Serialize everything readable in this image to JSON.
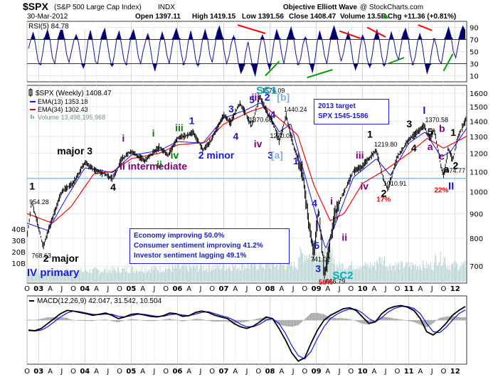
{
  "header": {
    "symbol": "$SPX",
    "name": "(S&P 500 Large Cap Index)",
    "exchange": "INDX",
    "provider": "Objective Elliott Wave",
    "copyright": "@ StockCharts.com",
    "date": "30-Mar-2012",
    "open": "Open 1397.11",
    "high": "High 1419.15",
    "low": "Low 1391.56",
    "close": "Close 1408.47",
    "volume": "Volume 13.5B",
    "change": "Chg +11.36 (+0.81%)",
    "change_arrow": "up-arrow-icon"
  },
  "rsi_panel": {
    "label": "RSI(5) 84.78",
    "ticks": [
      "90",
      "70",
      "50",
      "30",
      "10"
    ]
  },
  "price_panel": {
    "legend": [
      {
        "text": "$SPX (Weekly) 1408.47",
        "color": "#000000"
      },
      {
        "text": "EMA(13) 1353.18",
        "color": "#1010ff"
      },
      {
        "text": "EMA(34) 1302.43",
        "color": "#ff0000"
      },
      {
        "text": "Volume 13,498,195,968",
        "color": "#8fb0b0"
      }
    ],
    "target_box": [
      "2013 target",
      "SPX 1545-1586"
    ],
    "sentiment_box": [
      "Economy improving 50.0%",
      "Consumer sentiment improving 41.2%",
      "Investor sentiment lagging 49.1%"
    ],
    "volume_ticks": [
      "40B",
      "30B",
      "20B",
      "10B"
    ]
  },
  "macd_panel": {
    "label": "MACD(12,26,9) 42.047, 31.542, 10.504"
  },
  "x_axis": [
    "O",
    "03",
    "A",
    "J",
    "O",
    "04",
    "A",
    "J",
    "O",
    "05",
    "A",
    "J",
    "O",
    "06",
    "A",
    "J",
    "O",
    "07",
    "A",
    "J",
    "O",
    "08",
    "A",
    "J",
    "O",
    "09",
    "A",
    "J",
    "O",
    "10",
    "A",
    "J",
    "O",
    "11",
    "A",
    "J",
    "O",
    "12"
  ],
  "chart_data": {
    "type": "line",
    "title": "$SPX (S&P 500 Large Cap Index) INDX Weekly",
    "xlabel": "",
    "ylabel": "",
    "x_range": [
      2002.75,
      2012.25
    ],
    "ylim": [
      650,
      1650
    ],
    "ylog": true,
    "y_ticks": [
      700,
      800,
      900,
      1000,
      1100,
      1200,
      1300,
      1400,
      1500,
      1600
    ],
    "support_line": 1065,
    "price_path": [
      [
        2002.75,
        800
      ],
      [
        2002.85,
        954.28
      ],
      [
        2002.95,
        880
      ],
      [
        2003.1,
        768.63
      ],
      [
        2003.3,
        880
      ],
      [
        2003.5,
        1000
      ],
      [
        2003.75,
        1040
      ],
      [
        2004.0,
        1150
      ],
      [
        2004.2,
        1110
      ],
      [
        2004.45,
        1085
      ],
      [
        2004.6,
        1063
      ],
      [
        2004.8,
        1170
      ],
      [
        2005.0,
        1210
      ],
      [
        2005.3,
        1160
      ],
      [
        2005.6,
        1235
      ],
      [
        2005.8,
        1190
      ],
      [
        2006.0,
        1290
      ],
      [
        2006.35,
        1325
      ],
      [
        2006.55,
        1220
      ],
      [
        2006.7,
        1265
      ],
      [
        2007.0,
        1440
      ],
      [
        2007.15,
        1390
      ],
      [
        2007.35,
        1530
      ],
      [
        2007.6,
        1370.6
      ],
      [
        2007.78,
        1576.09
      ],
      [
        2007.95,
        1450
      ],
      [
        2008.05,
        1405
      ],
      [
        2008.2,
        1270.05
      ],
      [
        2008.35,
        1440.24
      ],
      [
        2008.5,
        1250
      ],
      [
        2008.7,
        1100
      ],
      [
        2008.85,
        850
      ],
      [
        2008.95,
        741.02
      ],
      [
        2009.05,
        920
      ],
      [
        2009.18,
        666.79
      ],
      [
        2009.4,
        900
      ],
      [
        2009.6,
        1000
      ],
      [
        2009.8,
        1100
      ],
      [
        2010.0,
        1130
      ],
      [
        2010.3,
        1219.8
      ],
      [
        2010.45,
        1060
      ],
      [
        2010.55,
        1010.91
      ],
      [
        2010.75,
        1180
      ],
      [
        2011.0,
        1280
      ],
      [
        2011.15,
        1320
      ],
      [
        2011.33,
        1370.58
      ],
      [
        2011.45,
        1290
      ],
      [
        2011.55,
        1345
      ],
      [
        2011.7,
        1120
      ],
      [
        2011.76,
        1074.77
      ],
      [
        2011.85,
        1230
      ],
      [
        2011.95,
        1160
      ],
      [
        2012.05,
        1290
      ],
      [
        2012.24,
        1419.15
      ],
      [
        2012.25,
        1408.47
      ]
    ],
    "ema13_path": [
      [
        2002.75,
        860
      ],
      [
        2003.2,
        830
      ],
      [
        2003.6,
        970
      ],
      [
        2004.0,
        1120
      ],
      [
        2004.6,
        1095
      ],
      [
        2005.0,
        1190
      ],
      [
        2005.6,
        1215
      ],
      [
        2006.0,
        1270
      ],
      [
        2006.55,
        1260
      ],
      [
        2007.0,
        1420
      ],
      [
        2007.5,
        1480
      ],
      [
        2007.8,
        1530
      ],
      [
        2008.2,
        1330
      ],
      [
        2008.45,
        1380
      ],
      [
        2008.85,
        1000
      ],
      [
        2009.2,
        760
      ],
      [
        2009.5,
        900
      ],
      [
        2009.8,
        1070
      ],
      [
        2010.3,
        1170
      ],
      [
        2010.6,
        1080
      ],
      [
        2011.0,
        1260
      ],
      [
        2011.35,
        1330
      ],
      [
        2011.7,
        1180
      ],
      [
        2011.9,
        1210
      ],
      [
        2012.25,
        1353.18
      ]
    ],
    "ema34_path": [
      [
        2002.75,
        900
      ],
      [
        2003.3,
        860
      ],
      [
        2003.7,
        930
      ],
      [
        2004.2,
        1090
      ],
      [
        2004.6,
        1100
      ],
      [
        2005.0,
        1170
      ],
      [
        2005.6,
        1200
      ],
      [
        2006.0,
        1250
      ],
      [
        2006.6,
        1265
      ],
      [
        2007.0,
        1380
      ],
      [
        2007.6,
        1470
      ],
      [
        2007.9,
        1500
      ],
      [
        2008.3,
        1390
      ],
      [
        2008.6,
        1310
      ],
      [
        2008.95,
        1030
      ],
      [
        2009.3,
        870
      ],
      [
        2009.6,
        900
      ],
      [
        2010.0,
        1040
      ],
      [
        2010.5,
        1110
      ],
      [
        2011.0,
        1200
      ],
      [
        2011.4,
        1290
      ],
      [
        2011.75,
        1230
      ],
      [
        2012.25,
        1302.43
      ]
    ],
    "annotations": [
      {
        "text": "954.28",
        "x": 2002.8,
        "y": 954.28
      },
      {
        "text": "768.63",
        "x": 2002.85,
        "y": 768.63
      },
      {
        "text": "1576.09",
        "x": 2007.82,
        "y": 1576.09
      },
      {
        "text": "1370.60",
        "x": 2007.55,
        "y": 1370.6
      },
      {
        "text": "1440.24",
        "x": 2008.3,
        "y": 1440.24
      },
      {
        "text": "1270.05",
        "x": 2008.0,
        "y": 1270.05
      },
      {
        "text": "741.02",
        "x": 2008.88,
        "y": 741.02
      },
      {
        "text": "666.79",
        "x": 2009.2,
        "y": 666.79
      },
      {
        "text": "1219.80",
        "x": 2010.25,
        "y": 1219.8
      },
      {
        "text": "1010.91",
        "x": 2010.45,
        "y": 1010.91
      },
      {
        "text": "1370.58",
        "x": 2011.35,
        "y": 1370.58
      },
      {
        "text": "1074.77",
        "x": 2011.72,
        "y": 1074.77
      },
      {
        "text": "58%",
        "x": 2009.05,
        "y": 650
      },
      {
        "text": "17%",
        "x": 2010.3,
        "y": 985
      },
      {
        "text": "22%",
        "x": 2011.55,
        "y": 1030
      }
    ],
    "wave_labels": [
      {
        "text": "1",
        "x": 2002.8,
        "y": 1010,
        "color": "#000000"
      },
      {
        "text": "2 major",
        "x": 2003.1,
        "y": 715,
        "color": "#000000"
      },
      {
        "text": "IV primary",
        "x": 2002.75,
        "y": 668,
        "color": "#1a1adf"
      },
      {
        "text": "major 3",
        "x": 2003.4,
        "y": 1195,
        "color": "#000000"
      },
      {
        "text": "4",
        "x": 2004.55,
        "y": 1005,
        "color": "#000000"
      },
      {
        "text": "ii intermediate",
        "x": 2004.75,
        "y": 1110,
        "color": "#800080"
      },
      {
        "text": "i",
        "x": 2004.8,
        "y": 1270,
        "color": "#800080"
      },
      {
        "text": "i",
        "x": 2005.45,
        "y": 1300,
        "color": "#008000"
      },
      {
        "text": "ii",
        "x": 2005.55,
        "y": 1120,
        "color": "#008000"
      },
      {
        "text": "iii",
        "x": 2005.95,
        "y": 1335,
        "color": "#008000"
      },
      {
        "text": "iv",
        "x": 2005.85,
        "y": 1170,
        "color": "#008000"
      },
      {
        "text": "1",
        "x": 2006.25,
        "y": 1380,
        "color": "#1a1adf"
      },
      {
        "text": "2 minor",
        "x": 2006.45,
        "y": 1170,
        "color": "#1a1adf"
      },
      {
        "text": "3",
        "x": 2007.1,
        "y": 1460,
        "color": "#1a1adf"
      },
      {
        "text": "4",
        "x": 2007.2,
        "y": 1280,
        "color": "#1a1adf"
      },
      {
        "text": "5",
        "x": 2007.55,
        "y": 1525,
        "color": "#1a1adf"
      },
      {
        "text": "iii",
        "x": 2007.6,
        "y": 1545,
        "color": "#800080"
      },
      {
        "text": "iv",
        "x": 2007.65,
        "y": 1235,
        "color": "#800080"
      },
      {
        "text": "SC1",
        "x": 2007.7,
        "y": 1655,
        "color": "#00b0c0"
      },
      {
        "text": "2",
        "x": 2007.88,
        "y": 1545,
        "color": "#1a1adf"
      },
      {
        "text": "[b]",
        "x": 2008.15,
        "y": 1545,
        "color": "#7fb0e0"
      },
      {
        "text": "4",
        "x": 2008.0,
        "y": 1420,
        "color": "#1a1adf"
      },
      {
        "text": "3",
        "x": 2007.95,
        "y": 1170,
        "color": "#1a1adf"
      },
      {
        "text": "[a]",
        "x": 2008.02,
        "y": 1170,
        "color": "#7fb0e0"
      },
      {
        "text": "1",
        "x": 2008.5,
        "y": 1140,
        "color": "#1a1adf"
      },
      {
        "text": "4",
        "x": 2008.9,
        "y": 930,
        "color": "#1a1adf"
      },
      {
        "text": "5",
        "x": 2008.95,
        "y": 760,
        "color": "#1a1adf"
      },
      {
        "text": "3",
        "x": 2008.98,
        "y": 680,
        "color": "#1a1adf"
      },
      {
        "text": "SC2",
        "x": 2009.35,
        "y": 655,
        "color": "#00b0c0"
      },
      {
        "text": "i",
        "x": 2009.3,
        "y": 940,
        "color": "#800080"
      },
      {
        "text": "ii",
        "x": 2009.55,
        "y": 790,
        "color": "#800080"
      },
      {
        "text": "iii",
        "x": 2009.85,
        "y": 1170,
        "color": "#800080"
      },
      {
        "text": "iv",
        "x": 2009.95,
        "y": 1010,
        "color": "#800080"
      },
      {
        "text": "1",
        "x": 2010.1,
        "y": 1295,
        "color": "#000000"
      },
      {
        "text": "2",
        "x": 2010.4,
        "y": 975,
        "color": "#000000"
      },
      {
        "text": "I",
        "x": 2011.3,
        "y": 1450,
        "color": "#1a1adf"
      },
      {
        "text": "3",
        "x": 2010.95,
        "y": 1360,
        "color": "#000000"
      },
      {
        "text": "4",
        "x": 2011.05,
        "y": 1210,
        "color": "#000000"
      },
      {
        "text": "5",
        "x": 2011.4,
        "y": 1310,
        "color": "#000000"
      },
      {
        "text": "a",
        "x": 2011.4,
        "y": 1220,
        "color": "#800080"
      },
      {
        "text": "b",
        "x": 2011.65,
        "y": 1330,
        "color": "#800080"
      },
      {
        "text": "c",
        "x": 2011.65,
        "y": 1165,
        "color": "#800080"
      },
      {
        "text": "1",
        "x": 2011.9,
        "y": 1305,
        "color": "#000000"
      },
      {
        "text": "a",
        "x": 2011.75,
        "y": 1095,
        "color": "#000000"
      },
      {
        "text": "2",
        "x": 2011.95,
        "y": 1115,
        "color": "#000000"
      },
      {
        "text": "II",
        "x": 2011.85,
        "y": 1010,
        "color": "#1a1adf"
      }
    ],
    "rsi_series": [
      55,
      70,
      82,
      60,
      35,
      28,
      48,
      75,
      86,
      70,
      40,
      30,
      55,
      80,
      90,
      72,
      45,
      32,
      50,
      68,
      78,
      64,
      38,
      22,
      40,
      70,
      85,
      62,
      34,
      30,
      58,
      80,
      88,
      66,
      40,
      25,
      44,
      72,
      84,
      60,
      36,
      28,
      52,
      76,
      86,
      70,
      42,
      30,
      50,
      66,
      80,
      58,
      32,
      18,
      36,
      64,
      82,
      70,
      44,
      30,
      54,
      78,
      88,
      74,
      48,
      28,
      40,
      68,
      84,
      66,
      38,
      26,
      46,
      72,
      86,
      72,
      44,
      32,
      56,
      82,
      92,
      78,
      50,
      30,
      42,
      64,
      76,
      56,
      30,
      14,
      22,
      48,
      66,
      44,
      22,
      10,
      30,
      60,
      78,
      62,
      36,
      20,
      42,
      70,
      86,
      74,
      48,
      30,
      52,
      78,
      90,
      76,
      46,
      28,
      38,
      62,
      74,
      54,
      28,
      16,
      36,
      66,
      84,
      70,
      44,
      30,
      56,
      80,
      92,
      80,
      52,
      34,
      48,
      70,
      82,
      62,
      34,
      20,
      30,
      58,
      78,
      62,
      36,
      24,
      44,
      72,
      86,
      70,
      42,
      26,
      38,
      66,
      82,
      70,
      48,
      36,
      58,
      80,
      88,
      74,
      46,
      28,
      40,
      66,
      80,
      60,
      32,
      14,
      26,
      52,
      72,
      58,
      36,
      30,
      54,
      78,
      90,
      76,
      50,
      40,
      60,
      82,
      92,
      84.78
    ],
    "rsi_trendlines": [
      {
        "type": "down",
        "x1": 2007.3,
        "y1": 94,
        "x2": 2007.9,
        "y2": 80
      },
      {
        "type": "up",
        "x1": 2007.9,
        "y1": 10,
        "x2": 2008.2,
        "y2": 34
      },
      {
        "type": "up",
        "x1": 2008.8,
        "y1": 7,
        "x2": 2009.35,
        "y2": 20
      },
      {
        "type": "down",
        "x1": 2009.5,
        "y1": 84,
        "x2": 2009.95,
        "y2": 72
      },
      {
        "type": "down",
        "x1": 2010.1,
        "y1": 90,
        "x2": 2010.5,
        "y2": 74
      },
      {
        "type": "up",
        "x1": 2010.55,
        "y1": 30,
        "x2": 2010.9,
        "y2": 40
      },
      {
        "type": "down",
        "x1": 2011.2,
        "y1": 94,
        "x2": 2011.5,
        "y2": 85
      },
      {
        "type": "up",
        "x1": 2011.75,
        "y1": 18,
        "x2": 2011.95,
        "y2": 46
      }
    ],
    "macd_ylim": [
      -130,
      70
    ],
    "macd_series": [
      -30,
      -32,
      -25,
      -10,
      5,
      20,
      30,
      28,
      24,
      20,
      15,
      18,
      22,
      15,
      5,
      10,
      18,
      20,
      16,
      12,
      10,
      14,
      22,
      20,
      12,
      14,
      24,
      28,
      24,
      15,
      10,
      5,
      -10,
      -20,
      -25,
      -18,
      -5,
      10,
      5,
      -25,
      -60,
      -100,
      -125,
      -115,
      -70,
      -30,
      0,
      15,
      25,
      35,
      38,
      30,
      10,
      -10,
      -5,
      20,
      35,
      42,
      45,
      40,
      30,
      5,
      -35,
      -45,
      -30,
      -10,
      15,
      30,
      42.047
    ],
    "signal_series": [
      -32,
      -33,
      -30,
      -20,
      -5,
      10,
      22,
      28,
      26,
      22,
      18,
      17,
      19,
      18,
      12,
      10,
      14,
      18,
      18,
      15,
      12,
      12,
      17,
      19,
      16,
      14,
      19,
      24,
      26,
      20,
      14,
      9,
      0,
      -12,
      -20,
      -20,
      -12,
      0,
      5,
      -10,
      -40,
      -78,
      -108,
      -118,
      -95,
      -55,
      -20,
      5,
      18,
      28,
      34,
      33,
      22,
      5,
      -5,
      8,
      25,
      36,
      42,
      42,
      36,
      20,
      -10,
      -35,
      -38,
      -22,
      0,
      20,
      31.542
    ]
  }
}
